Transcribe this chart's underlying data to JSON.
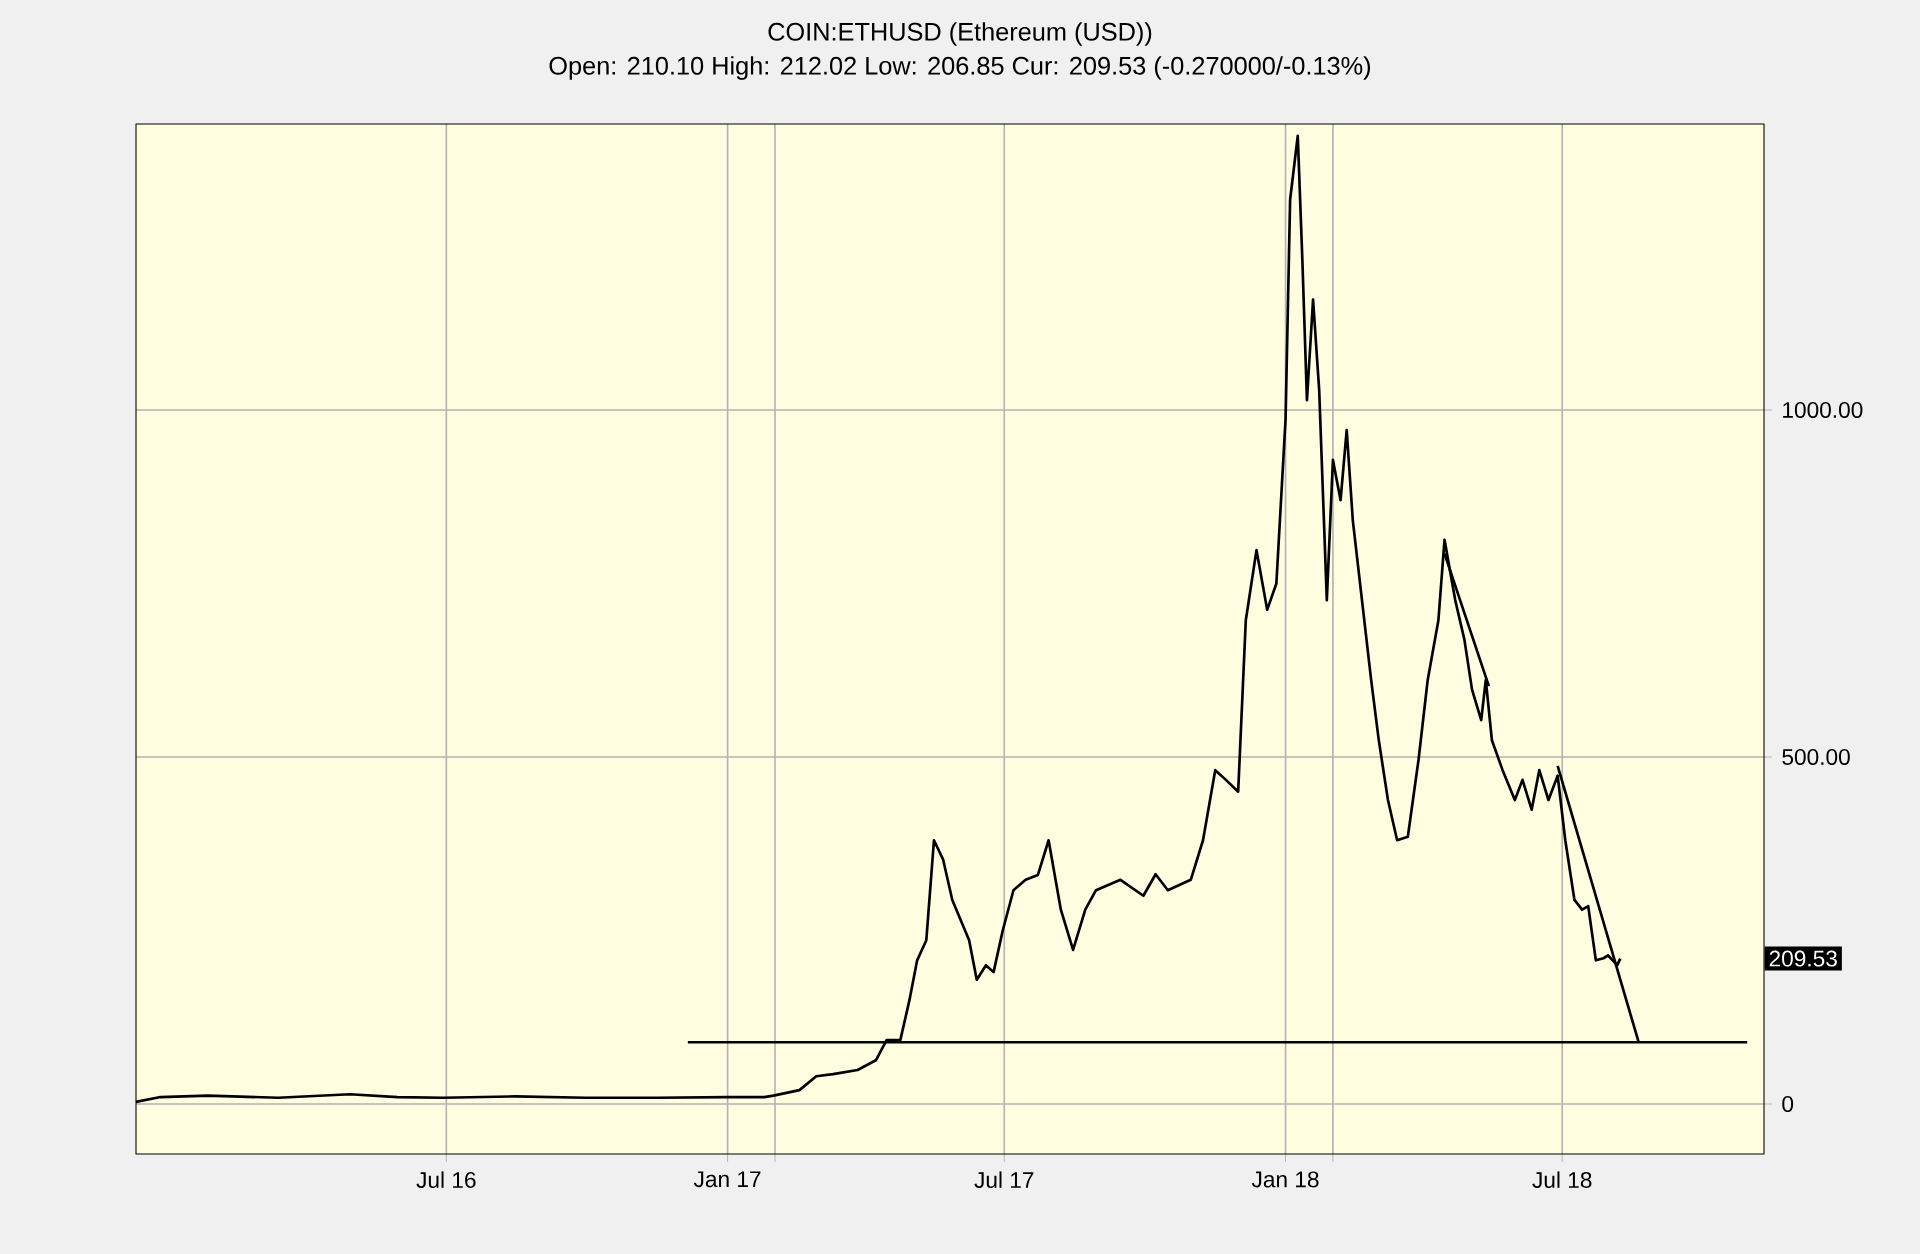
{
  "chart_data": {
    "type": "line",
    "title": "COIN:ETHUSD (Ethereum (USD))",
    "subtitle": "Open: 210.10 High: 212.02 Low: 206.85 Cur: 209.53 (-0.270000/-0.13%)",
    "xlim": [
      "2015-12-11",
      "2018-11-10"
    ],
    "xticks": [
      {
        "value": "2016-07-01",
        "label": "Jul 16"
      },
      {
        "value": "2017-01-01",
        "label": "Jan 17"
      },
      {
        "value": "2017-02-01",
        "label": null
      },
      {
        "value": "2017-07-01",
        "label": "Jul 17"
      },
      {
        "value": "2018-01-01",
        "label": "Jan 18"
      },
      {
        "value": "2018-02-01",
        "label": null
      },
      {
        "value": "2018-07-01",
        "label": "Jul 18"
      }
    ],
    "ylim": [
      -72,
      1412
    ],
    "yticks": [
      0,
      {
        "value": 500,
        "label": "500.00"
      },
      {
        "value": 1000,
        "label": "1000.00"
      }
    ],
    "grid": true,
    "annotations": [
      {
        "text": "209.53",
        "y": 209.53
      }
    ],
    "series": [
      {
        "color": "#000000",
        "x": [
          "2015-12-11",
          "2015-12-27",
          "2016-01-27",
          "2016-03-13",
          "2016-04-29",
          "2016-05-30",
          "2016-06-29",
          "2016-08-15",
          "2016-09-30",
          "2016-11-16",
          "2017-01-01",
          "2017-01-25",
          "2017-01-31",
          "2017-02-17",
          "2017-02-28",
          "2017-03-11",
          "2017-03-27",
          "2017-04-08",
          "2017-04-15",
          "2017-04-24",
          "2017-04-30",
          "2017-05-05",
          "2017-05-11",
          "2017-05-16",
          "2017-05-22",
          "2017-05-28",
          "2017-06-08",
          "2017-06-13",
          "2017-06-19",
          "2017-06-24",
          "2017-06-30",
          "2017-07-07",
          "2017-07-15",
          "2017-07-23",
          "2017-07-30",
          "2017-08-07",
          "2017-08-15",
          "2017-08-23",
          "2017-08-30",
          "2017-09-15",
          "2017-09-30",
          "2017-10-08",
          "2017-10-16",
          "2017-10-31",
          "2017-11-08",
          "2017-11-16",
          "2017-11-23",
          "2017-12-01",
          "2017-12-06",
          "2017-12-13",
          "2017-12-20",
          "2017-12-26",
          "2018-01-01",
          "2018-01-04",
          "2018-01-09",
          "2018-01-12",
          "2018-01-15",
          "2018-01-19",
          "2018-01-23",
          "2018-01-28",
          "2018-02-01",
          "2018-02-06",
          "2018-02-10",
          "2018-02-14",
          "2018-02-20",
          "2018-02-26",
          "2018-03-03",
          "2018-03-09",
          "2018-03-15",
          "2018-03-22",
          "2018-03-29",
          "2018-04-04",
          "2018-04-11",
          "2018-04-15",
          "2018-04-22",
          "2018-04-28",
          "2018-05-03",
          "2018-05-09",
          "2018-05-12",
          "2018-05-16",
          "2018-05-23",
          "2018-05-31",
          "2018-06-05",
          "2018-06-11",
          "2018-06-16",
          "2018-06-22",
          "2018-06-28",
          "2018-07-03",
          "2018-07-09",
          "2018-07-14",
          "2018-07-18",
          "2018-07-23",
          "2018-07-28",
          "2018-07-31",
          "2018-08-06",
          "2018-08-08"
        ],
        "values": [
          3,
          10,
          12,
          9,
          14,
          10,
          9,
          11,
          9,
          9,
          10,
          10,
          12,
          20,
          40,
          43,
          49,
          63,
          92,
          92,
          150,
          207,
          236,
          380,
          352,
          294,
          236,
          179,
          200,
          190,
          250,
          308,
          323,
          330,
          380,
          280,
          222,
          280,
          308,
          323,
          300,
          331,
          308,
          323,
          380,
          481,
          467,
          450,
          697,
          798,
          712,
          750,
          986,
          1303,
          1395,
          1216,
          1014,
          1159,
          1029,
          726,
          928,
          870,
          971,
          841,
          726,
          611,
          524,
          438,
          380,
          385,
          496,
          611,
          697,
          813,
          726,
          669,
          597,
          553,
          611,
          524,
          481,
          438,
          467,
          424,
          481,
          438,
          473,
          380,
          294,
          280,
          285,
          207,
          210,
          214,
          200,
          209.53
        ]
      },
      {
        "color": "#000000",
        "x": [
          "2016-12-06",
          "2018-10-30"
        ],
        "values": [
          89,
          89
        ]
      },
      {
        "color": "#000000",
        "x": [
          "2018-06-28",
          "2018-08-20"
        ],
        "values": [
          487,
          89
        ]
      },
      {
        "color": "#000000",
        "x": [
          "2018-04-15",
          "2018-05-14"
        ],
        "values": [
          793,
          602
        ]
      }
    ]
  }
}
